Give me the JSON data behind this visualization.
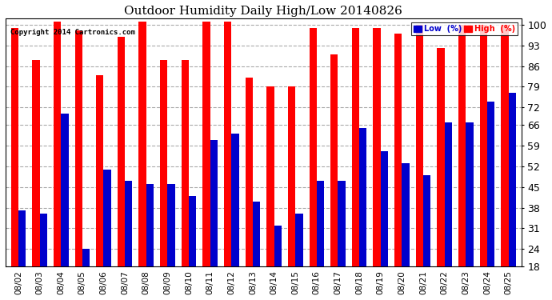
{
  "title": "Outdoor Humidity Daily High/Low 20140826",
  "copyright": "Copyright 2014 Cartronics.com",
  "dates": [
    "08/02",
    "08/03",
    "08/04",
    "08/05",
    "08/06",
    "08/07",
    "08/08",
    "08/09",
    "08/10",
    "08/11",
    "08/12",
    "08/13",
    "08/14",
    "08/15",
    "08/16",
    "08/17",
    "08/18",
    "08/19",
    "08/20",
    "08/21",
    "08/22",
    "08/23",
    "08/24",
    "08/25"
  ],
  "high": [
    99,
    88,
    101,
    98,
    83,
    96,
    101,
    88,
    88,
    101,
    101,
    82,
    79,
    79,
    99,
    90,
    99,
    99,
    97,
    100,
    92,
    100,
    100,
    100
  ],
  "low": [
    37,
    36,
    70,
    24,
    51,
    47,
    46,
    46,
    42,
    61,
    63,
    40,
    32,
    36,
    47,
    47,
    65,
    57,
    53,
    49,
    67,
    67,
    74,
    77
  ],
  "high_color": "#ff0000",
  "low_color": "#0000cc",
  "bg_color": "#ffffff",
  "grid_color": "#aaaaaa",
  "ylim_min": 18,
  "ylim_max": 102,
  "yticks": [
    18,
    24,
    31,
    38,
    45,
    52,
    59,
    66,
    72,
    79,
    86,
    93,
    100
  ],
  "legend_low_label": "Low  (%)",
  "legend_high_label": "High  (%)",
  "bar_width": 0.35
}
